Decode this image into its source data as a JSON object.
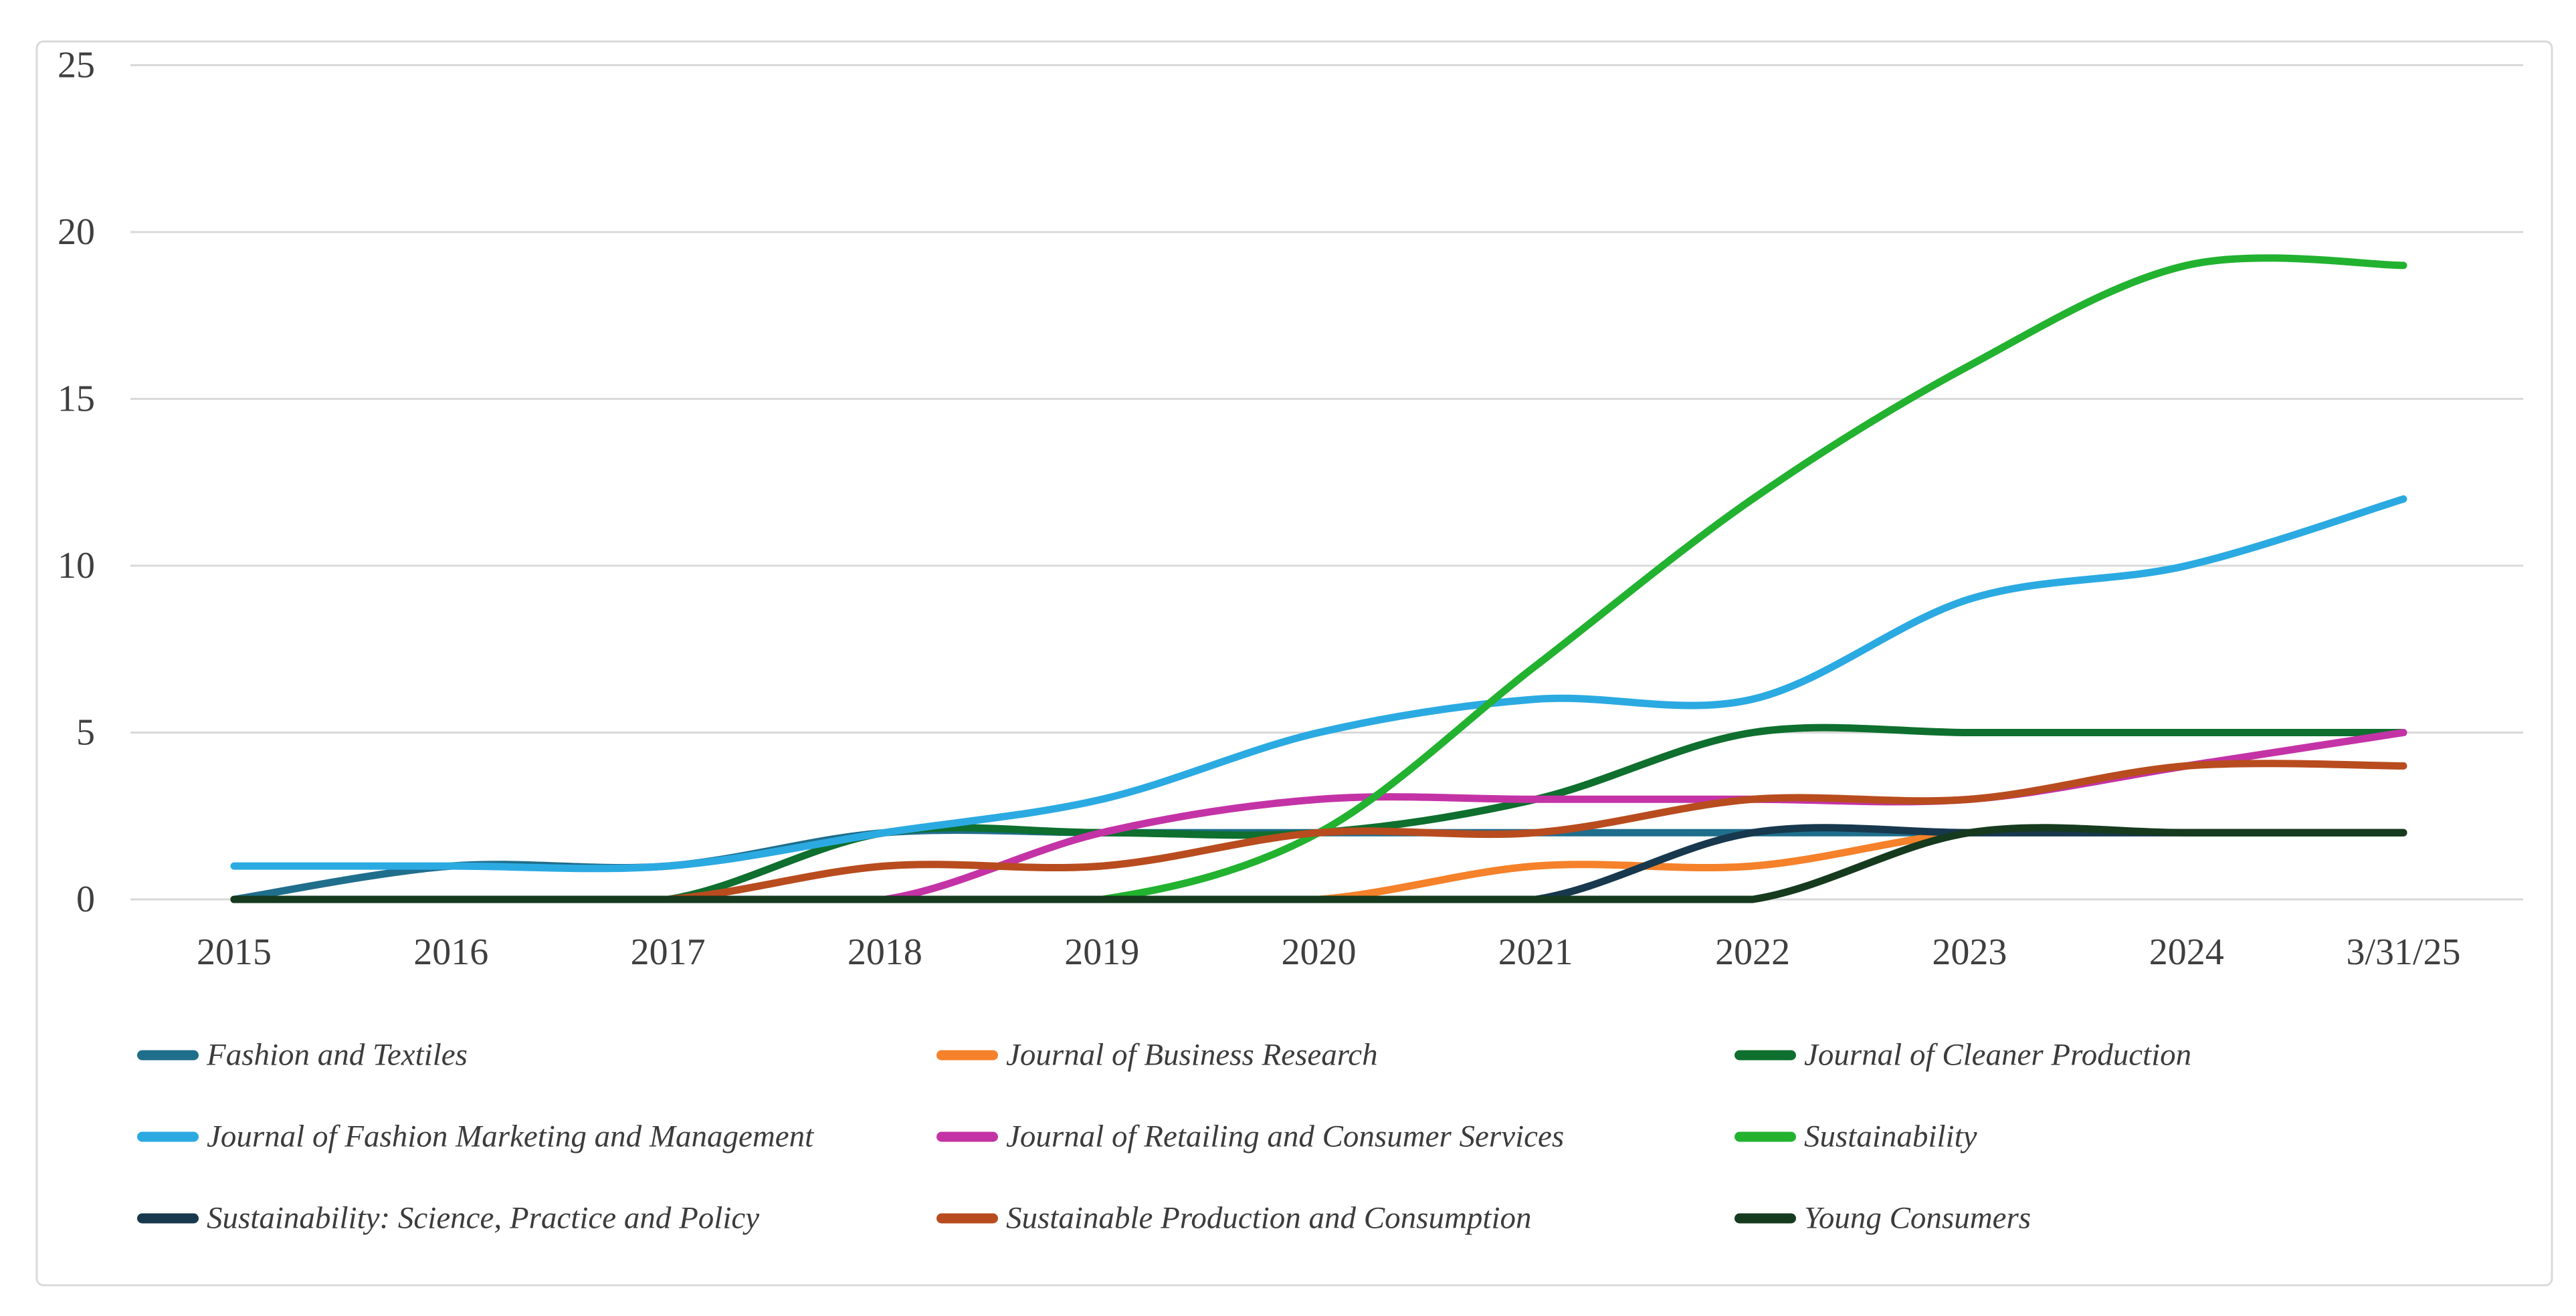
{
  "figure": {
    "background": "#ffffff",
    "border_color": "#d9d9d9",
    "grid_color": "#d9d9d9",
    "tick_label_color": "#3f3f3f",
    "legend_text_color": "#3c3c3c"
  },
  "chart_data": {
    "type": "line",
    "title": "",
    "xlabel": "",
    "ylabel": "",
    "smooth": true,
    "grid": "horizontal",
    "legend_position": "bottom",
    "ylim": [
      0,
      25
    ],
    "yticks": [
      "0",
      "5",
      "10",
      "15",
      "20",
      "25"
    ],
    "ytick_values": [
      0,
      5,
      10,
      15,
      20,
      25
    ],
    "categories": [
      "2015",
      "2016",
      "2017",
      "2018",
      "2019",
      "2020",
      "2021",
      "2022",
      "2023",
      "2024",
      "3/31/25"
    ],
    "series": [
      {
        "name": "Fashion and Textiles",
        "color": "#1f6e8c",
        "values": [
          0,
          1,
          1,
          2,
          2,
          2,
          2,
          2,
          2,
          2,
          2
        ]
      },
      {
        "name": "Journal of Business Research",
        "color": "#f5812a",
        "values": [
          0,
          0,
          0,
          0,
          0,
          0,
          1,
          1,
          2,
          2,
          2
        ]
      },
      {
        "name": "Journal of Cleaner Production",
        "color": "#0e6f2e",
        "values": [
          0,
          0,
          0,
          2,
          2,
          2,
          3,
          5,
          5,
          5,
          5
        ]
      },
      {
        "name": "Journal of Fashion Marketing and Management",
        "color": "#2baae2",
        "values": [
          1,
          1,
          1,
          2,
          3,
          5,
          6,
          6,
          9,
          10,
          12
        ]
      },
      {
        "name": "Journal of Retailing and Consumer Services",
        "color": "#c433a6",
        "values": [
          0,
          0,
          0,
          0,
          2,
          3,
          3,
          3,
          3,
          4,
          5
        ]
      },
      {
        "name": "Sustainability",
        "color": "#22b230",
        "values": [
          0,
          0,
          0,
          0,
          0,
          2,
          7,
          12,
          16,
          19,
          19
        ]
      },
      {
        "name": "Sustainability: Science, Practice and Policy",
        "color": "#17384d",
        "values": [
          0,
          0,
          0,
          0,
          0,
          0,
          0,
          2,
          2,
          2,
          2
        ]
      },
      {
        "name": "Sustainable Production and Consumption",
        "color": "#b84c1e",
        "values": [
          0,
          0,
          0,
          1,
          1,
          2,
          2,
          3,
          3,
          4,
          4
        ]
      },
      {
        "name": "Young Consumers",
        "color": "#163a1e",
        "values": [
          0,
          0,
          0,
          0,
          0,
          0,
          0,
          0,
          2,
          2,
          2
        ]
      }
    ]
  }
}
